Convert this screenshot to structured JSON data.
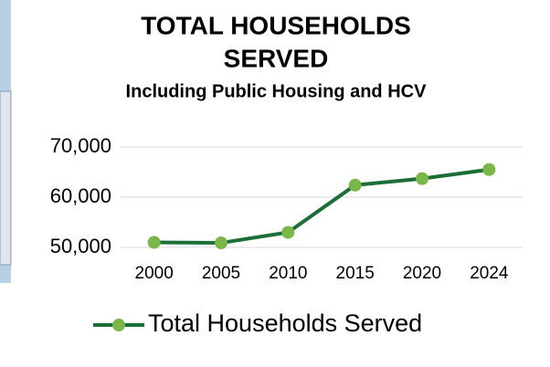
{
  "chart_data": {
    "type": "line",
    "title": [
      "TOTAL HOUSEHOLDS",
      "SERVED"
    ],
    "subtitle": "Including Public Housing and HCV",
    "categories": [
      "2000",
      "2005",
      "2010",
      "2015",
      "2020",
      "2024"
    ],
    "series": [
      {
        "name": "Total Households Served",
        "color": "#1a6e37",
        "marker_color": "#7ab648",
        "values": [
          51000,
          50900,
          53000,
          62400,
          63700,
          65500
        ]
      }
    ],
    "ylim": [
      50000,
      70000
    ],
    "yticks": [
      {
        "value": 50000,
        "label": "50,000"
      },
      {
        "value": 60000,
        "label": "60,000"
      },
      {
        "value": 70000,
        "label": "70,000"
      }
    ],
    "grid": true,
    "legend": "bottom"
  }
}
